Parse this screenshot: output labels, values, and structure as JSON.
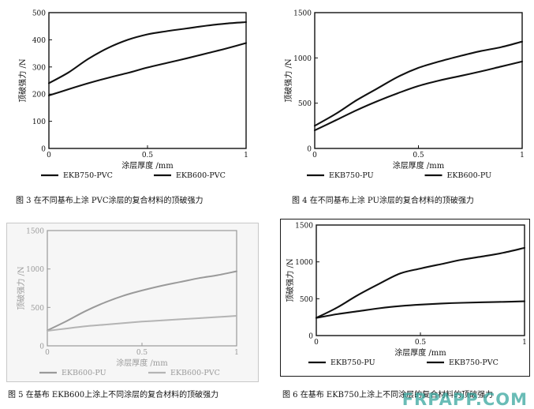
{
  "chart_data": [
    {
      "id": "fig3",
      "type": "line",
      "caption": "图 3   在不同基布上涂  PVC涂层的复合材料的顶破强力",
      "xlabel": "涂层厚度 /mm",
      "ylabel": "顶破强力 /N",
      "xlim": [
        0,
        1
      ],
      "ylim": [
        0,
        500
      ],
      "xticks": [
        0,
        0.5,
        1
      ],
      "xtick_labels": [
        "0",
        "0.5",
        "1"
      ],
      "yticks": [
        0,
        100,
        200,
        300,
        400,
        500
      ],
      "ytick_labels": [
        "0",
        "100",
        "200",
        "300",
        "400",
        "500"
      ],
      "grid": false,
      "legend_position": "bottom",
      "series": [
        {
          "name": "EKB750-PVC",
          "color": "#111111",
          "style": "solid",
          "x": [
            0,
            0.1,
            0.2,
            0.3,
            0.4,
            0.5,
            0.6,
            0.7,
            0.8,
            0.9,
            1.0
          ],
          "y": [
            240,
            280,
            330,
            370,
            400,
            420,
            432,
            442,
            452,
            460,
            465
          ]
        },
        {
          "name": "EKB600-PVC",
          "color": "#111111",
          "style": "solid",
          "x": [
            0,
            0.1,
            0.2,
            0.3,
            0.4,
            0.5,
            0.6,
            0.7,
            0.8,
            0.9,
            1.0
          ],
          "y": [
            195,
            218,
            240,
            260,
            278,
            298,
            315,
            332,
            350,
            368,
            388
          ]
        }
      ]
    },
    {
      "id": "fig4",
      "type": "line",
      "caption": "图 4   在不同基布上涂  PU涂层的复合材料的顶破强力",
      "xlabel": "涂层厚度 /mm",
      "ylabel": "顶破强力 /N",
      "xlim": [
        0,
        1
      ],
      "ylim": [
        0,
        1500
      ],
      "xticks": [
        0,
        0.5,
        1
      ],
      "xtick_labels": [
        "0",
        "0.5",
        "1"
      ],
      "yticks": [
        0,
        500,
        1000,
        1500
      ],
      "ytick_labels": [
        "0",
        "500",
        "1000",
        "1500"
      ],
      "grid": false,
      "legend_position": "bottom",
      "series": [
        {
          "name": "EKB750-PU",
          "color": "#111111",
          "style": "solid",
          "x": [
            0,
            0.1,
            0.2,
            0.3,
            0.4,
            0.5,
            0.6,
            0.7,
            0.8,
            0.9,
            1.0
          ],
          "y": [
            250,
            380,
            530,
            660,
            790,
            890,
            960,
            1020,
            1075,
            1120,
            1180
          ]
        },
        {
          "name": "EKB600-PU",
          "color": "#111111",
          "style": "solid",
          "x": [
            0,
            0.1,
            0.2,
            0.3,
            0.4,
            0.5,
            0.6,
            0.7,
            0.8,
            0.9,
            1.0
          ],
          "y": [
            200,
            310,
            420,
            520,
            610,
            690,
            750,
            800,
            850,
            905,
            960
          ]
        }
      ]
    },
    {
      "id": "fig5",
      "type": "line",
      "caption": "图 5   在基布 EKB600上涂上不同涂层的复合材料的顶破强力",
      "xlabel": "涂层厚度 /mm",
      "ylabel": "顶破强力 /N",
      "xlim": [
        0,
        1
      ],
      "ylim": [
        0,
        1500
      ],
      "xticks": [
        0,
        0.5,
        1
      ],
      "xtick_labels": [
        "0",
        "0.5",
        "1"
      ],
      "yticks": [
        0,
        500,
        1000,
        1500
      ],
      "ytick_labels": [
        "0",
        "500",
        "1000",
        "1500"
      ],
      "grid": false,
      "legend_position": "bottom",
      "series": [
        {
          "name": "EKB600-PU",
          "color": "#9a9a9a",
          "style": "solid",
          "x": [
            0,
            0.1,
            0.2,
            0.3,
            0.4,
            0.5,
            0.6,
            0.7,
            0.8,
            0.9,
            1.0
          ],
          "y": [
            200,
            320,
            450,
            560,
            650,
            720,
            780,
            830,
            880,
            920,
            970
          ]
        },
        {
          "name": "EKB600-PVC",
          "color": "#b4b4b4",
          "style": "solid",
          "x": [
            0,
            0.1,
            0.2,
            0.3,
            0.4,
            0.5,
            0.6,
            0.7,
            0.8,
            0.9,
            1.0
          ],
          "y": [
            195,
            225,
            255,
            275,
            295,
            315,
            330,
            345,
            360,
            375,
            390
          ]
        }
      ]
    },
    {
      "id": "fig6",
      "type": "line",
      "caption": "图 6   在基布 EKB750上涂上不同涂层的复合材料的顶破强力",
      "xlabel": "涂层厚度 /mm",
      "ylabel": "顶破强力 /N",
      "xlim": [
        0,
        1
      ],
      "ylim": [
        0,
        1500
      ],
      "xticks": [
        0,
        0.5,
        1
      ],
      "xtick_labels": [
        "0",
        "0.5",
        "1"
      ],
      "yticks": [
        0,
        500,
        1000,
        1500
      ],
      "ytick_labels": [
        "0",
        "500",
        "1000",
        "1500"
      ],
      "grid": false,
      "legend_position": "bottom",
      "series": [
        {
          "name": "EKB750-PU",
          "color": "#111111",
          "style": "solid",
          "x": [
            0,
            0.1,
            0.2,
            0.3,
            0.4,
            0.5,
            0.6,
            0.7,
            0.8,
            0.9,
            1.0
          ],
          "y": [
            240,
            380,
            550,
            700,
            840,
            910,
            970,
            1030,
            1075,
            1125,
            1190
          ]
        },
        {
          "name": "EKB750-PVC",
          "color": "#111111",
          "style": "solid",
          "x": [
            0,
            0.1,
            0.2,
            0.3,
            0.4,
            0.5,
            0.6,
            0.7,
            0.8,
            0.9,
            1.0
          ],
          "y": [
            240,
            290,
            330,
            370,
            400,
            420,
            435,
            445,
            452,
            458,
            465
          ]
        }
      ]
    }
  ],
  "watermark": "FRPAPP.COM"
}
